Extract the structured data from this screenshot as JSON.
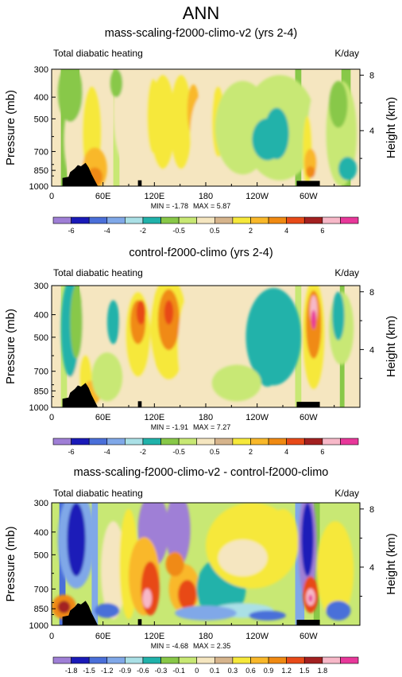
{
  "page_title": "ANN",
  "chart_data": [
    {
      "type": "heatmap",
      "title": "mass-scaling-f2000-climo-v2 (yrs 2-4)",
      "left_label": "Total diabatic heating",
      "units": "K/day",
      "ylabel": "Pressure (mb)",
      "ylabel_right": "Height (km)",
      "x_ticks": [
        "0",
        "60E",
        "120E",
        "180",
        "120W",
        "60W"
      ],
      "y_ticks": [
        "300",
        "400",
        "500",
        "700",
        "850",
        "1000"
      ],
      "right_ticks": [
        "8",
        "4"
      ],
      "min_label": "MIN = -1.78",
      "max_label": "MAX = 5.87",
      "colorbar_labels": [
        "-6",
        "-4",
        "-2",
        "-0.5",
        "0.5",
        "2",
        "4",
        "6"
      ],
      "colorbar_colors": [
        "#9f7fd6",
        "#1a1ab8",
        "#4a6fd9",
        "#80a8e8",
        "#aae0e6",
        "#20b2aa",
        "#88c848",
        "#c8e874",
        "#f5e6c0",
        "#d6b48c",
        "#f6e83a",
        "#f9b82a",
        "#f08a12",
        "#e84a18",
        "#a32020",
        "#f7b8c8",
        "#e8389a"
      ]
    },
    {
      "type": "heatmap",
      "title": "control-f2000-climo (yrs 2-4)",
      "left_label": "Total diabatic heating",
      "units": "K/day",
      "ylabel": "Pressure (mb)",
      "ylabel_right": "Height (km)",
      "x_ticks": [
        "0",
        "60E",
        "120E",
        "180",
        "120W",
        "60W"
      ],
      "y_ticks": [
        "300",
        "400",
        "500",
        "700",
        "850",
        "1000"
      ],
      "right_ticks": [
        "8",
        "4"
      ],
      "min_label": "MIN = -1.91",
      "max_label": "MAX = 7.27",
      "colorbar_labels": [
        "-6",
        "-4",
        "-2",
        "-0.5",
        "0.5",
        "2",
        "4",
        "6"
      ],
      "colorbar_colors": [
        "#9f7fd6",
        "#1a1ab8",
        "#4a6fd9",
        "#80a8e8",
        "#aae0e6",
        "#20b2aa",
        "#88c848",
        "#c8e874",
        "#f5e6c0",
        "#d6b48c",
        "#f6e83a",
        "#f9b82a",
        "#f08a12",
        "#e84a18",
        "#a32020",
        "#f7b8c8",
        "#e8389a"
      ]
    },
    {
      "type": "heatmap",
      "title": "mass-scaling-f2000-climo-v2 - control-f2000-climo",
      "left_label": "Total diabatic heating",
      "units": "K/day",
      "ylabel": "Pressure (mb)",
      "ylabel_right": "Height (km)",
      "x_ticks": [
        "0",
        "60E",
        "120E",
        "180",
        "120W",
        "60W"
      ],
      "y_ticks": [
        "300",
        "400",
        "500",
        "700",
        "850",
        "1000"
      ],
      "right_ticks": [
        "8",
        "4"
      ],
      "min_label": "MIN = -4.68",
      "max_label": "MAX = 2.35",
      "colorbar_labels": [
        "-1.8",
        "-1.5",
        "-1.2",
        "-0.9",
        "-0.6",
        "-0.3",
        "-0.1",
        "0",
        "0.1",
        "0.3",
        "0.6",
        "0.9",
        "1.2",
        "1.5",
        "1.8"
      ],
      "colorbar_colors": [
        "#9f7fd6",
        "#1a1ab8",
        "#4a6fd9",
        "#80a8e8",
        "#aae0e6",
        "#20b2aa",
        "#88c848",
        "#c8e874",
        "#f5e6c0",
        "#d6b48c",
        "#f6e83a",
        "#f9b82a",
        "#f08a12",
        "#e84a18",
        "#a32020",
        "#f7b8c8",
        "#e8389a"
      ]
    }
  ]
}
